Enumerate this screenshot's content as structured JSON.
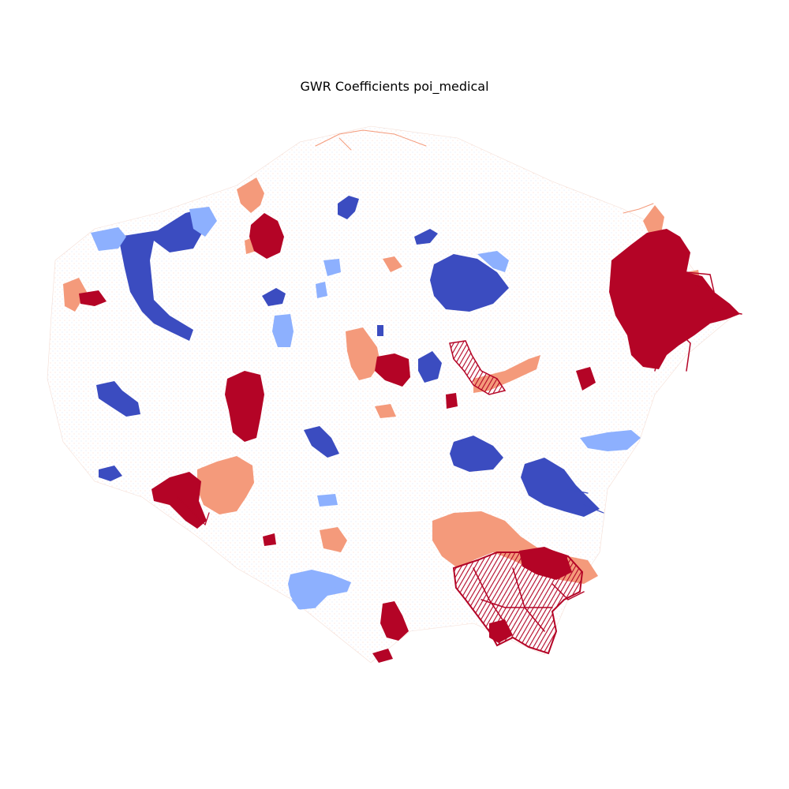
{
  "title": "GWR Coefficients poi_medical",
  "colors": {
    "strong_negative": "#3b4cc0",
    "negative": "#8db0fe",
    "neutral": "#f2f2f2",
    "positive": "#f49a7b",
    "strong_positive": "#b40426",
    "faint_negative": "#c9d6f5",
    "faint_positive": "#f7c4b2"
  }
}
